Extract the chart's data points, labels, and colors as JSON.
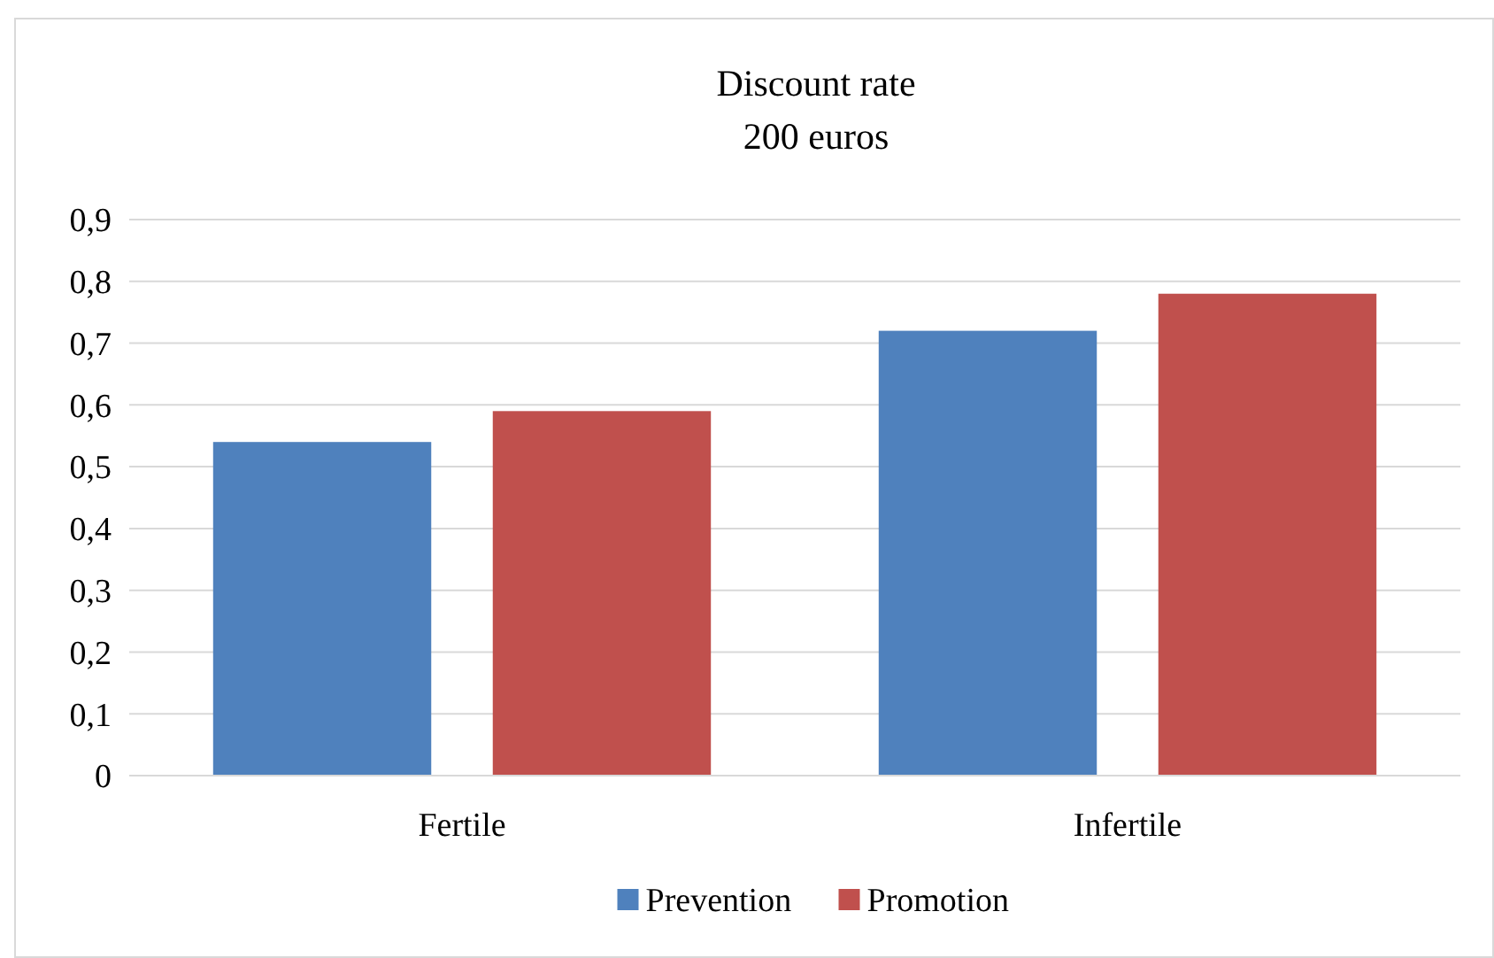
{
  "chart_data": {
    "type": "bar",
    "title": "Discount rate",
    "subtitle": "200 euros",
    "categories": [
      "Fertile",
      "Infertile"
    ],
    "series": [
      {
        "name": "Prevention",
        "color": "#4f81bd",
        "values": [
          0.54,
          0.72
        ]
      },
      {
        "name": "Promotion",
        "color": "#c0504d",
        "values": [
          0.59,
          0.78
        ]
      }
    ],
    "ylim": [
      0,
      0.9
    ],
    "yticks": [
      0,
      {
        "value": 0.1,
        "label": "0,1"
      },
      {
        "value": 0.2,
        "label": "0,2"
      },
      {
        "value": 0.3,
        "label": "0,3"
      },
      {
        "value": 0.4,
        "label": "0,4"
      },
      {
        "value": 0.5,
        "label": "0,5"
      },
      {
        "value": 0.6,
        "label": "0,6"
      },
      {
        "value": 0.7,
        "label": "0,7"
      },
      {
        "value": 0.8,
        "label": "0,8"
      },
      {
        "value": 0.9,
        "label": "0,9"
      }
    ],
    "grid": "y",
    "legend": "bottom"
  }
}
